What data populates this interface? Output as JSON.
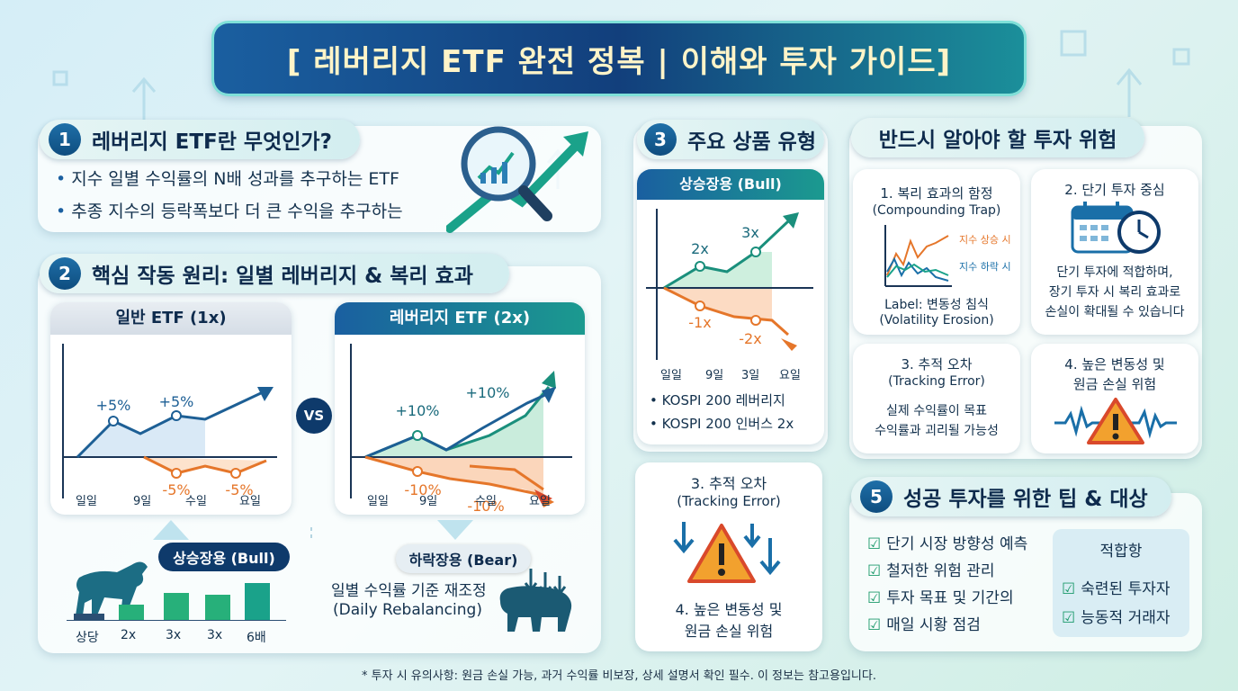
{
  "header": {
    "title": "[ 레버리지 ETF 완전 정복 | 이해와 투자 가이드]"
  },
  "s1": {
    "num": "1",
    "title": "레버리지 ETF란 무엇인가?",
    "bullets": [
      "지수 일별 수익률의 N배 성과를 추구하는 ETF",
      "추종 지수의 등락폭보다 더 큰 수익을 추구하는"
    ]
  },
  "s2": {
    "num": "2",
    "title": "핵심 작동 원리: 일별 레버리지 & 복리 효과",
    "normal": {
      "header": "일반 ETF (1x)",
      "up_labels": [
        "+5%",
        "+5%"
      ],
      "down_labels": [
        "-5%",
        "-5%"
      ],
      "x_ticks": [
        "일일",
        "9일",
        "수일",
        "요일"
      ]
    },
    "vs": "VS",
    "leveraged": {
      "header": "레버리지 ETF (2x)",
      "up_labels": [
        "+10%",
        "+10%"
      ],
      "down_labels": [
        "-10%",
        "-10%"
      ],
      "x_ticks": [
        "일일",
        "9일",
        "수일",
        "요일"
      ]
    },
    "bull_badge": "상승장용 (Bull)",
    "bear_badge": "하락장용 (Bear)",
    "bars": [
      "상당",
      "2x",
      "3x",
      "3x",
      "6배"
    ],
    "bar_levels": [
      0.25,
      0.4,
      0.7,
      0.65,
      0.95
    ],
    "rebalance": [
      "일별 수익률 기준 재조정",
      "(Daily Rebalancing)"
    ]
  },
  "s3": {
    "num": "3",
    "title": "주요 상품 유형",
    "subheader": "상승장용 (Bull)",
    "up_labels": [
      "2x",
      "3x"
    ],
    "down_labels": [
      "-1x",
      "-2x"
    ],
    "x_ticks": [
      "일일",
      "9일",
      "3일",
      "요일"
    ],
    "products": [
      "KOSPI 200 레버리지",
      "KOSPI 200 인버스 2x"
    ],
    "bottom_title": [
      "3. 추적 오차",
      "(Tracking Error)"
    ],
    "bottom_text": [
      "4. 높은 변동성 및",
      "원금 손실 위험"
    ]
  },
  "risks": {
    "title": "반드시 알아야 할 투자 위험",
    "r1": {
      "title": [
        "1. 복리 효과의 함정",
        "(Compounding Trap)"
      ],
      "legend_up": "지수 상승 시",
      "legend_down": "지수 하락 시",
      "label": [
        "Label: 변동성 침식",
        "(Volatility Erosion)"
      ]
    },
    "r2": {
      "title": "2. 단기 투자 중심",
      "text": [
        "단기 투자에 적합하며,",
        "장기 투자 시 복리 효과로",
        "손실이 확대될 수 있습니다"
      ]
    },
    "r3": {
      "title": [
        "3. 추적 오차",
        "(Tracking Error)"
      ],
      "text": [
        "실제 수익률이 목표",
        "수익률과 괴리될 가능성"
      ]
    },
    "r4": {
      "title": [
        "4. 높은 변동성 및",
        "원금 손실 위험"
      ]
    }
  },
  "s5": {
    "num": "5",
    "title": "성공 투자를 위한 팁 & 대상",
    "tips": [
      "단기 시장 방향성 예측",
      "철저한 위험 관리",
      "투자 목표 및 기간의",
      "매일 시황 점검"
    ],
    "fit_title": "적합항",
    "fit_items": [
      "숙련된 투자자",
      "능동적 거래자"
    ]
  },
  "footer": "* 투자 시 유의사항: 원금 손실 가능, 과거 수익률 비보장, 상세 설명서 확인 필수. 이 정보는 참고용입니다.",
  "colors": {
    "navy": "#0e3a6b",
    "teal": "#1aa28a",
    "green": "#27b07a",
    "orange": "#e5762a",
    "red": "#d9492b"
  }
}
